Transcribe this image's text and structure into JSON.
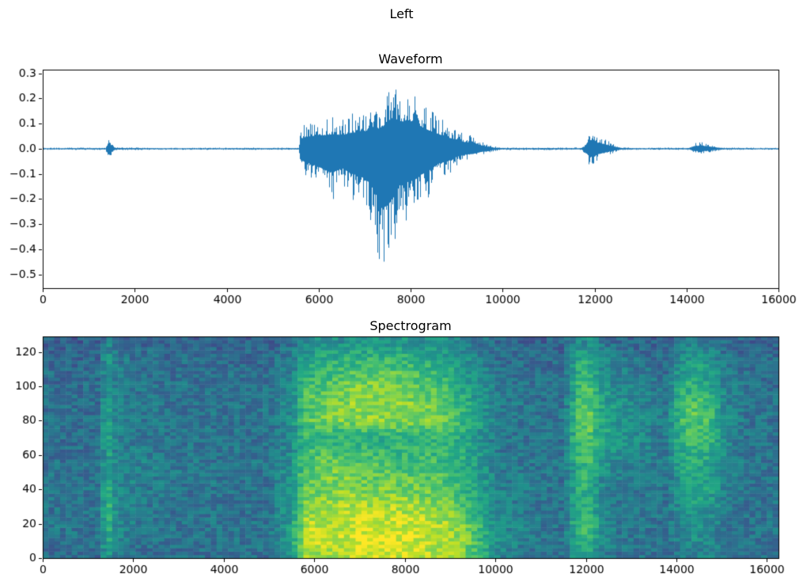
{
  "figure": {
    "title": "Left",
    "background": "#ffffff"
  },
  "chart_data": [
    {
      "type": "line",
      "title": "Waveform",
      "xlabel": "",
      "ylabel": "",
      "line_color": "#1f77b4",
      "xlim": [
        0,
        16000
      ],
      "ylim": [
        -0.555,
        0.315
      ],
      "xticks": [
        0,
        2000,
        4000,
        6000,
        8000,
        10000,
        12000,
        14000,
        16000
      ],
      "yticks": [
        0.3,
        0.2,
        0.1,
        0.0,
        -0.1,
        -0.2,
        -0.3,
        -0.4,
        -0.5
      ],
      "grid": false,
      "envelope_note": "amplitude envelope of audio samples as [x, min, max]",
      "envelope": [
        [
          0,
          -0.004,
          0.004
        ],
        [
          1370,
          -0.005,
          0.005
        ],
        [
          1410,
          -0.05,
          0.045
        ],
        [
          1460,
          -0.045,
          0.04
        ],
        [
          1520,
          -0.015,
          0.015
        ],
        [
          1600,
          -0.006,
          0.006
        ],
        [
          2500,
          -0.004,
          0.004
        ],
        [
          5560,
          -0.005,
          0.005
        ],
        [
          5600,
          -0.1,
          0.09
        ],
        [
          5800,
          -0.13,
          0.11
        ],
        [
          6000,
          -0.16,
          0.12
        ],
        [
          6150,
          -0.19,
          0.12
        ],
        [
          6300,
          -0.21,
          0.13
        ],
        [
          6500,
          -0.17,
          0.12
        ],
        [
          6700,
          -0.22,
          0.14
        ],
        [
          6900,
          -0.24,
          0.15
        ],
        [
          7100,
          -0.3,
          0.16
        ],
        [
          7300,
          -0.45,
          0.18
        ],
        [
          7400,
          -0.52,
          0.2
        ],
        [
          7500,
          -0.5,
          0.24
        ],
        [
          7600,
          -0.44,
          0.275
        ],
        [
          7700,
          -0.35,
          0.25
        ],
        [
          7800,
          -0.3,
          0.24
        ],
        [
          7950,
          -0.29,
          0.25
        ],
        [
          8100,
          -0.27,
          0.23
        ],
        [
          8250,
          -0.22,
          0.19
        ],
        [
          8400,
          -0.19,
          0.16
        ],
        [
          8600,
          -0.13,
          0.13
        ],
        [
          8800,
          -0.11,
          0.1
        ],
        [
          9000,
          -0.07,
          0.08
        ],
        [
          9200,
          -0.05,
          0.055
        ],
        [
          9350,
          -0.045,
          0.06
        ],
        [
          9500,
          -0.03,
          0.03
        ],
        [
          9650,
          -0.02,
          0.02
        ],
        [
          9800,
          -0.01,
          0.01
        ],
        [
          10000,
          -0.005,
          0.005
        ],
        [
          11700,
          -0.005,
          0.005
        ],
        [
          11780,
          -0.02,
          0.02
        ],
        [
          11860,
          -0.06,
          0.07
        ],
        [
          11950,
          -0.075,
          0.08
        ],
        [
          12050,
          -0.05,
          0.055
        ],
        [
          12150,
          -0.04,
          0.045
        ],
        [
          12300,
          -0.025,
          0.03
        ],
        [
          12450,
          -0.013,
          0.015
        ],
        [
          12600,
          -0.006,
          0.006
        ],
        [
          13000,
          -0.004,
          0.004
        ],
        [
          14050,
          -0.005,
          0.005
        ],
        [
          14150,
          -0.018,
          0.022
        ],
        [
          14300,
          -0.022,
          0.028
        ],
        [
          14450,
          -0.018,
          0.022
        ],
        [
          14600,
          -0.01,
          0.012
        ],
        [
          14780,
          -0.005,
          0.005
        ],
        [
          16000,
          -0.0035,
          0.0035
        ]
      ]
    },
    {
      "type": "heatmap",
      "title": "Spectrogram",
      "xlabel": "",
      "ylabel": "",
      "colormap": "viridis",
      "xlim": [
        0,
        16256
      ],
      "ylim": [
        0,
        129
      ],
      "xticks": [
        0,
        2000,
        4000,
        6000,
        8000,
        10000,
        12000,
        14000,
        16000
      ],
      "yticks": [
        0,
        20,
        40,
        60,
        80,
        100,
        120
      ],
      "grid_note": "intensity 0-1 per [freq_row][time_col]; rows bottom-to-top between freq_bin edges, cols between time_bin edges",
      "time_bins": [
        0,
        1200,
        1300,
        1550,
        1700,
        2500,
        3500,
        4500,
        5400,
        5600,
        6000,
        6500,
        7000,
        7500,
        8000,
        8500,
        9000,
        9400,
        9700,
        10500,
        11300,
        11750,
        11900,
        12200,
        12450,
        13000,
        13600,
        13950,
        14200,
        14600,
        15000,
        15200,
        16000,
        16256
      ],
      "freq_bins": [
        0,
        5,
        15,
        25,
        35,
        45,
        55,
        65,
        75,
        85,
        95,
        105,
        115,
        122,
        129
      ],
      "grid": [
        [
          0.35,
          0.35,
          0.55,
          0.4,
          0.36,
          0.36,
          0.36,
          0.36,
          0.5,
          0.85,
          0.88,
          0.9,
          0.92,
          0.92,
          0.9,
          0.88,
          0.8,
          0.7,
          0.45,
          0.38,
          0.38,
          0.55,
          0.6,
          0.45,
          0.38,
          0.38,
          0.36,
          0.4,
          0.45,
          0.42,
          0.38,
          0.36,
          0.36
        ],
        [
          0.38,
          0.38,
          0.65,
          0.45,
          0.38,
          0.38,
          0.38,
          0.38,
          0.55,
          0.9,
          0.92,
          0.93,
          0.95,
          0.95,
          0.93,
          0.9,
          0.85,
          0.72,
          0.48,
          0.4,
          0.38,
          0.62,
          0.68,
          0.48,
          0.4,
          0.38,
          0.38,
          0.42,
          0.48,
          0.44,
          0.4,
          0.38,
          0.38
        ],
        [
          0.38,
          0.38,
          0.68,
          0.48,
          0.4,
          0.38,
          0.38,
          0.38,
          0.55,
          0.88,
          0.9,
          0.92,
          0.93,
          0.93,
          0.92,
          0.88,
          0.82,
          0.7,
          0.46,
          0.4,
          0.38,
          0.68,
          0.72,
          0.5,
          0.4,
          0.38,
          0.38,
          0.45,
          0.5,
          0.46,
          0.4,
          0.38,
          0.38
        ],
        [
          0.38,
          0.38,
          0.66,
          0.48,
          0.4,
          0.38,
          0.38,
          0.38,
          0.52,
          0.82,
          0.85,
          0.88,
          0.88,
          0.88,
          0.86,
          0.82,
          0.75,
          0.65,
          0.44,
          0.4,
          0.38,
          0.62,
          0.64,
          0.48,
          0.4,
          0.38,
          0.38,
          0.48,
          0.55,
          0.5,
          0.42,
          0.38,
          0.38
        ],
        [
          0.38,
          0.38,
          0.62,
          0.46,
          0.42,
          0.38,
          0.38,
          0.38,
          0.5,
          0.75,
          0.8,
          0.82,
          0.8,
          0.8,
          0.78,
          0.75,
          0.68,
          0.6,
          0.42,
          0.4,
          0.38,
          0.6,
          0.62,
          0.46,
          0.42,
          0.4,
          0.38,
          0.52,
          0.6,
          0.55,
          0.44,
          0.38,
          0.38
        ],
        [
          0.38,
          0.38,
          0.6,
          0.46,
          0.46,
          0.4,
          0.4,
          0.38,
          0.5,
          0.75,
          0.8,
          0.78,
          0.75,
          0.72,
          0.72,
          0.7,
          0.65,
          0.58,
          0.42,
          0.4,
          0.38,
          0.62,
          0.66,
          0.5,
          0.44,
          0.42,
          0.38,
          0.55,
          0.62,
          0.56,
          0.44,
          0.38,
          0.38
        ],
        [
          0.36,
          0.38,
          0.58,
          0.44,
          0.42,
          0.4,
          0.38,
          0.38,
          0.48,
          0.68,
          0.72,
          0.7,
          0.68,
          0.66,
          0.68,
          0.66,
          0.62,
          0.55,
          0.4,
          0.38,
          0.38,
          0.66,
          0.7,
          0.55,
          0.48,
          0.44,
          0.4,
          0.58,
          0.64,
          0.58,
          0.45,
          0.38,
          0.38
        ],
        [
          0.36,
          0.36,
          0.58,
          0.44,
          0.4,
          0.38,
          0.38,
          0.38,
          0.46,
          0.64,
          0.66,
          0.62,
          0.6,
          0.62,
          0.64,
          0.64,
          0.6,
          0.52,
          0.4,
          0.38,
          0.38,
          0.7,
          0.74,
          0.58,
          0.52,
          0.46,
          0.4,
          0.62,
          0.7,
          0.62,
          0.46,
          0.38,
          0.38
        ],
        [
          0.36,
          0.36,
          0.58,
          0.44,
          0.4,
          0.38,
          0.38,
          0.38,
          0.48,
          0.72,
          0.78,
          0.8,
          0.82,
          0.82,
          0.8,
          0.76,
          0.68,
          0.58,
          0.42,
          0.38,
          0.38,
          0.72,
          0.78,
          0.6,
          0.52,
          0.46,
          0.4,
          0.66,
          0.75,
          0.66,
          0.48,
          0.38,
          0.38
        ],
        [
          0.36,
          0.36,
          0.58,
          0.44,
          0.4,
          0.38,
          0.38,
          0.38,
          0.48,
          0.72,
          0.78,
          0.82,
          0.84,
          0.84,
          0.8,
          0.75,
          0.66,
          0.56,
          0.42,
          0.38,
          0.38,
          0.7,
          0.76,
          0.58,
          0.5,
          0.44,
          0.38,
          0.64,
          0.72,
          0.62,
          0.46,
          0.38,
          0.38
        ],
        [
          0.35,
          0.36,
          0.56,
          0.42,
          0.38,
          0.38,
          0.38,
          0.38,
          0.46,
          0.68,
          0.74,
          0.78,
          0.8,
          0.8,
          0.76,
          0.7,
          0.62,
          0.52,
          0.4,
          0.38,
          0.36,
          0.66,
          0.72,
          0.54,
          0.46,
          0.42,
          0.38,
          0.58,
          0.66,
          0.56,
          0.44,
          0.36,
          0.36
        ],
        [
          0.35,
          0.35,
          0.56,
          0.42,
          0.38,
          0.36,
          0.36,
          0.36,
          0.44,
          0.62,
          0.66,
          0.7,
          0.72,
          0.72,
          0.68,
          0.64,
          0.56,
          0.48,
          0.38,
          0.36,
          0.36,
          0.62,
          0.66,
          0.5,
          0.42,
          0.4,
          0.36,
          0.52,
          0.6,
          0.52,
          0.42,
          0.36,
          0.36
        ],
        [
          0.33,
          0.33,
          0.52,
          0.4,
          0.36,
          0.34,
          0.34,
          0.34,
          0.42,
          0.55,
          0.58,
          0.6,
          0.62,
          0.62,
          0.6,
          0.56,
          0.5,
          0.44,
          0.36,
          0.34,
          0.34,
          0.55,
          0.58,
          0.45,
          0.38,
          0.36,
          0.34,
          0.46,
          0.52,
          0.46,
          0.38,
          0.34,
          0.34
        ],
        [
          0.3,
          0.3,
          0.45,
          0.36,
          0.32,
          0.31,
          0.31,
          0.31,
          0.38,
          0.46,
          0.48,
          0.5,
          0.52,
          0.52,
          0.5,
          0.48,
          0.44,
          0.4,
          0.33,
          0.31,
          0.31,
          0.46,
          0.48,
          0.4,
          0.34,
          0.32,
          0.31,
          0.4,
          0.44,
          0.4,
          0.34,
          0.31,
          0.31
        ]
      ]
    }
  ]
}
